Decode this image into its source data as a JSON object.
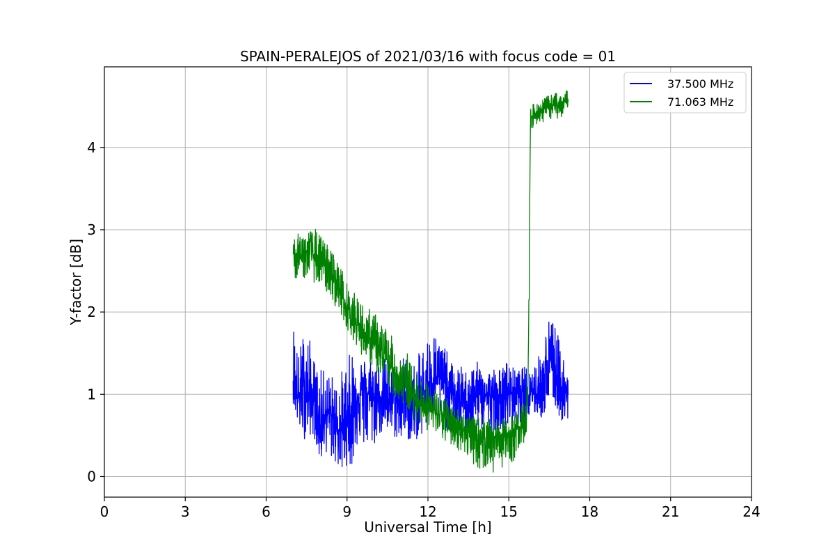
{
  "chart_data": {
    "type": "line",
    "title": "SPAIN-PERALEJOS of 2021/03/16 with focus code = 01",
    "xlabel": "Universal Time [h]",
    "ylabel": "Y-factor [dB]",
    "xlim": [
      0,
      24
    ],
    "ylim": [
      -0.25,
      4.98
    ],
    "xticks": [
      0,
      3,
      6,
      9,
      12,
      15,
      18,
      21,
      24
    ],
    "yticks": [
      0,
      1,
      2,
      3,
      4
    ],
    "grid": true,
    "legend_position": "top-right",
    "series": [
      {
        "name": "37.500 MHz",
        "color": "#0000ff",
        "x": [
          7.0,
          7.2,
          7.4,
          7.6,
          7.8,
          8.0,
          8.2,
          8.4,
          8.6,
          8.8,
          9.0,
          9.2,
          9.4,
          9.6,
          9.8,
          10.0,
          10.2,
          10.4,
          10.6,
          10.8,
          11.0,
          11.2,
          11.4,
          11.6,
          11.8,
          12.0,
          12.2,
          12.4,
          12.6,
          12.8,
          13.0,
          13.2,
          13.4,
          13.6,
          13.8,
          14.0,
          14.2,
          14.4,
          14.6,
          14.8,
          15.0,
          15.2,
          15.4,
          15.6,
          15.8,
          16.0,
          16.2,
          16.4,
          16.6,
          16.8,
          17.0,
          17.2
        ],
        "y": [
          1.2,
          0.95,
          1.05,
          1.0,
          0.9,
          0.6,
          0.8,
          0.75,
          0.6,
          0.55,
          0.7,
          0.8,
          1.0,
          1.05,
          1.0,
          0.95,
          1.0,
          0.9,
          0.95,
          0.9,
          0.95,
          0.9,
          0.8,
          0.85,
          1.0,
          1.1,
          1.25,
          1.2,
          1.15,
          1.05,
          0.95,
          0.9,
          0.9,
          0.95,
          1.0,
          1.0,
          1.0,
          0.95,
          0.95,
          1.0,
          1.0,
          1.05,
          1.0,
          1.0,
          1.05,
          1.0,
          1.05,
          1.2,
          1.35,
          1.2,
          1.05,
          1.0
        ],
        "upper": [
          1.95,
          1.5,
          1.8,
          1.7,
          1.4,
          1.3,
          1.3,
          1.25,
          1.2,
          1.3,
          1.4,
          1.6,
          1.5,
          1.45,
          1.45,
          1.5,
          1.4,
          1.45,
          1.4,
          1.3,
          1.45,
          1.5,
          1.35,
          1.45,
          1.6,
          1.72,
          1.78,
          1.7,
          1.6,
          1.45,
          1.3,
          1.35,
          1.3,
          1.35,
          1.4,
          1.35,
          1.3,
          1.35,
          1.3,
          1.35,
          1.45,
          1.3,
          1.3,
          1.35,
          1.3,
          1.45,
          1.5,
          1.9,
          1.97,
          1.75,
          1.5,
          1.45
        ],
        "lower": [
          0.9,
          0.55,
          0.45,
          0.5,
          0.45,
          0.15,
          0.3,
          0.2,
          0.15,
          0.0,
          0.15,
          0.1,
          0.4,
          0.35,
          0.3,
          0.35,
          0.5,
          0.5,
          0.5,
          0.45,
          0.4,
          0.45,
          0.4,
          0.45,
          0.5,
          0.6,
          0.7,
          0.65,
          0.55,
          0.55,
          0.45,
          0.55,
          0.5,
          0.5,
          0.6,
          0.55,
          0.55,
          0.5,
          0.55,
          0.6,
          0.55,
          0.6,
          0.65,
          0.65,
          0.7,
          0.75,
          0.7,
          0.8,
          0.95,
          0.75,
          0.65,
          0.45
        ]
      },
      {
        "name": "71.063 MHz",
        "color": "#008000",
        "x": [
          7.0,
          7.2,
          7.4,
          7.6,
          7.8,
          8.0,
          8.2,
          8.4,
          8.6,
          8.8,
          9.0,
          9.2,
          9.4,
          9.6,
          9.8,
          10.0,
          10.2,
          10.4,
          10.6,
          10.8,
          11.0,
          11.2,
          11.4,
          11.6,
          11.8,
          12.0,
          12.2,
          12.4,
          12.6,
          12.8,
          13.0,
          13.2,
          13.4,
          13.6,
          13.8,
          14.0,
          14.2,
          14.4,
          14.6,
          14.8,
          15.0,
          15.2,
          15.4,
          15.6,
          15.7,
          15.75,
          15.8,
          16.0,
          16.2,
          16.4,
          16.6,
          16.8,
          17.0,
          17.2
        ],
        "y": [
          2.62,
          2.68,
          2.7,
          2.72,
          2.68,
          2.62,
          2.55,
          2.48,
          2.35,
          2.2,
          2.05,
          1.95,
          1.85,
          1.75,
          1.68,
          1.6,
          1.52,
          1.42,
          1.35,
          1.25,
          1.18,
          1.1,
          1.0,
          0.95,
          0.9,
          0.85,
          0.8,
          0.75,
          0.72,
          0.68,
          0.62,
          0.58,
          0.55,
          0.52,
          0.5,
          0.48,
          0.47,
          0.46,
          0.47,
          0.48,
          0.5,
          0.55,
          0.6,
          0.68,
          0.9,
          2.2,
          4.35,
          4.42,
          4.45,
          4.48,
          4.5,
          4.52,
          4.55,
          4.55
        ],
        "upper": [
          2.95,
          2.95,
          3.0,
          3.0,
          3.02,
          2.95,
          2.85,
          2.8,
          2.65,
          2.55,
          2.35,
          2.25,
          2.2,
          2.1,
          2.05,
          2.0,
          1.95,
          1.85,
          1.75,
          1.6,
          1.5,
          1.55,
          1.35,
          1.25,
          1.2,
          1.15,
          1.1,
          1.0,
          0.95,
          0.9,
          0.85,
          0.82,
          0.8,
          0.75,
          0.7,
          0.75,
          0.7,
          0.68,
          0.68,
          0.7,
          0.7,
          0.78,
          0.85,
          0.95,
          1.2,
          2.5,
          4.5,
          4.55,
          4.58,
          4.62,
          4.65,
          4.68,
          4.72,
          4.7
        ],
        "lower": [
          2.4,
          2.42,
          2.4,
          2.45,
          2.35,
          2.3,
          2.25,
          2.15,
          2.05,
          1.95,
          1.8,
          1.68,
          1.55,
          1.45,
          1.4,
          1.3,
          1.2,
          1.12,
          1.05,
          0.95,
          0.9,
          0.82,
          0.72,
          0.65,
          0.62,
          0.55,
          0.5,
          0.48,
          0.42,
          0.38,
          0.35,
          0.3,
          0.25,
          0.2,
          0.1,
          0.05,
          0.12,
          0.0,
          0.15,
          0.1,
          0.1,
          0.2,
          0.35,
          0.4,
          0.6,
          1.8,
          4.2,
          4.28,
          4.3,
          4.32,
          4.35,
          4.35,
          4.38,
          4.4
        ]
      }
    ]
  }
}
